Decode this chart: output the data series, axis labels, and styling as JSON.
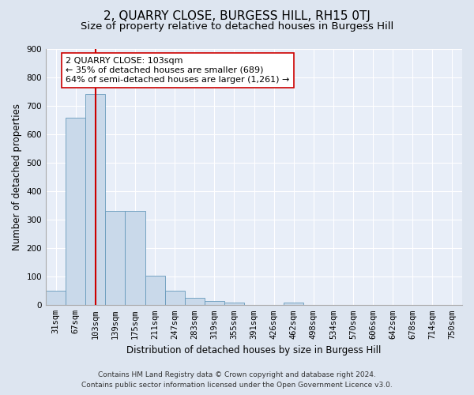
{
  "title": "2, QUARRY CLOSE, BURGESS HILL, RH15 0TJ",
  "subtitle": "Size of property relative to detached houses in Burgess Hill",
  "xlabel": "Distribution of detached houses by size in Burgess Hill",
  "ylabel": "Number of detached properties",
  "bar_labels": [
    "31sqm",
    "67sqm",
    "103sqm",
    "139sqm",
    "175sqm",
    "211sqm",
    "247sqm",
    "283sqm",
    "319sqm",
    "355sqm",
    "391sqm",
    "426sqm",
    "462sqm",
    "498sqm",
    "534sqm",
    "570sqm",
    "606sqm",
    "642sqm",
    "678sqm",
    "714sqm",
    "750sqm"
  ],
  "bar_values": [
    50,
    657,
    740,
    330,
    330,
    103,
    50,
    25,
    15,
    10,
    0,
    0,
    8,
    0,
    0,
    0,
    0,
    0,
    0,
    0,
    0
  ],
  "bar_color": "#c9d9ea",
  "bar_edgecolor": "#6699bb",
  "vline_x": 2,
  "vline_color": "#cc0000",
  "annotation_text": "2 QUARRY CLOSE: 103sqm\n← 35% of detached houses are smaller (689)\n64% of semi-detached houses are larger (1,261) →",
  "annotation_box_edgecolor": "#cc0000",
  "annotation_box_facecolor": "#ffffff",
  "ylim": [
    0,
    900
  ],
  "yticks": [
    0,
    100,
    200,
    300,
    400,
    500,
    600,
    700,
    800,
    900
  ],
  "bg_color": "#dde5f0",
  "plot_bg_color": "#e8eef8",
  "footer_line1": "Contains HM Land Registry data © Crown copyright and database right 2024.",
  "footer_line2": "Contains public sector information licensed under the Open Government Licence v3.0.",
  "title_fontsize": 11,
  "subtitle_fontsize": 9.5,
  "xlabel_fontsize": 8.5,
  "ylabel_fontsize": 8.5,
  "tick_fontsize": 7.5,
  "annotation_fontsize": 8,
  "footer_fontsize": 6.5
}
